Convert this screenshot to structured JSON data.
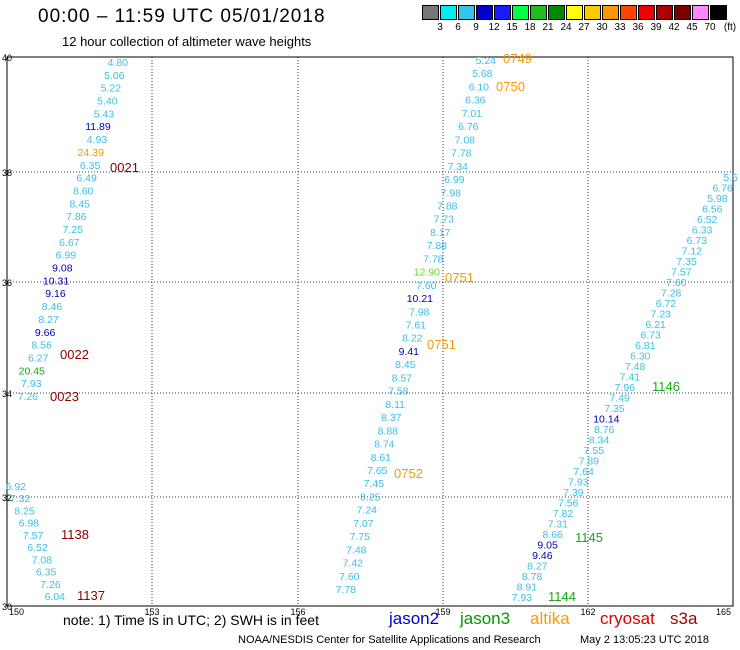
{
  "header": {
    "title": "00:00 – 11:59 UTC 05/01/2018",
    "subtitle": "12 hour collection of altimeter wave heights"
  },
  "colorbar": {
    "unit_label": "(ft)",
    "ticks": [
      "3",
      "6",
      "9",
      "12",
      "15",
      "18",
      "21",
      "24",
      "27",
      "30",
      "33",
      "36",
      "39",
      "42",
      "45",
      "70"
    ],
    "colors": [
      "#777777",
      "#00f0f0",
      "#36c4e8",
      "#0000cc",
      "#1a1aff",
      "#00ff44",
      "#22bb22",
      "#008800",
      "#ffff00",
      "#ffc800",
      "#ff9600",
      "#ff4400",
      "#ee0000",
      "#aa0000",
      "#770000",
      "#ff88ff",
      "#000000"
    ]
  },
  "map": {
    "lon_ticks": [
      "150",
      "153",
      "156",
      "159",
      "162",
      "165"
    ],
    "lat_ticks": [
      "40",
      "38",
      "36",
      "34",
      "32",
      "30"
    ]
  },
  "palette": {
    "cyan": "#3cc0e6",
    "blue": "#0000b4",
    "green": "#16aa16",
    "lime": "#66dd22",
    "orange": "#f49b00",
    "maroon": "#8b0000"
  },
  "tracks": [
    {
      "pts": [
        [
          "4.80",
          "cyan"
        ],
        [
          "5.06",
          "cyan"
        ],
        [
          "5.22",
          "cyan"
        ],
        [
          "5.40",
          "cyan"
        ],
        [
          "5.43",
          "cyan"
        ],
        [
          "11.89",
          "blue"
        ],
        [
          "4.93",
          "cyan"
        ],
        [
          "24.39",
          "orange"
        ],
        [
          "6.35",
          "cyan"
        ],
        [
          "6.49",
          "cyan"
        ],
        [
          "8.60",
          "cyan"
        ],
        [
          "8.45",
          "cyan"
        ],
        [
          "7.86",
          "cyan"
        ],
        [
          "7.25",
          "cyan"
        ],
        [
          "6.67",
          "cyan"
        ],
        [
          "6.99",
          "cyan"
        ],
        [
          "9.08",
          "blue"
        ],
        [
          "10.31",
          "blue"
        ],
        [
          "9.16",
          "blue"
        ],
        [
          "8.46",
          "cyan"
        ],
        [
          "8.27",
          "cyan"
        ],
        [
          "9.66",
          "blue"
        ],
        [
          "8.56",
          "cyan"
        ],
        [
          "6.27",
          "cyan"
        ],
        [
          "20.45",
          "green"
        ],
        [
          "7.93",
          "cyan"
        ],
        [
          "7.26",
          "cyan"
        ]
      ]
    },
    {
      "pts": [
        [
          "6.92",
          "cyan"
        ],
        [
          "7.32",
          "cyan"
        ],
        [
          "8.25",
          "cyan"
        ],
        [
          "6.98",
          "cyan"
        ],
        [
          "7.57",
          "cyan"
        ],
        [
          "6.52",
          "cyan"
        ],
        [
          "7.08",
          "cyan"
        ],
        [
          "6.35",
          "cyan"
        ],
        [
          "7.26",
          "cyan"
        ],
        [
          "6.04",
          "cyan"
        ]
      ]
    },
    {
      "pts": [
        [
          "5.24",
          "cyan"
        ],
        [
          "5.68",
          "cyan"
        ],
        [
          "6.10",
          "cyan"
        ],
        [
          "6.36",
          "cyan"
        ],
        [
          "7.01",
          "cyan"
        ],
        [
          "6.76",
          "cyan"
        ],
        [
          "7.08",
          "cyan"
        ],
        [
          "7.78",
          "cyan"
        ],
        [
          "7.34",
          "cyan"
        ],
        [
          "6.99",
          "cyan"
        ],
        [
          "7.98",
          "cyan"
        ],
        [
          "7.88",
          "cyan"
        ],
        [
          "7.73",
          "cyan"
        ],
        [
          "8.17",
          "cyan"
        ],
        [
          "7.88",
          "cyan"
        ],
        [
          "7.78",
          "cyan"
        ],
        [
          "12.90",
          "lime"
        ],
        [
          "7.60",
          "cyan"
        ],
        [
          "10.21",
          "blue"
        ],
        [
          "7.98",
          "cyan"
        ],
        [
          "7.61",
          "cyan"
        ],
        [
          "8.22",
          "cyan"
        ],
        [
          "9.41",
          "blue"
        ],
        [
          "8.45",
          "cyan"
        ],
        [
          "8.57",
          "cyan"
        ],
        [
          "7.58",
          "cyan"
        ],
        [
          "8.11",
          "cyan"
        ],
        [
          "8.37",
          "cyan"
        ],
        [
          "8.88",
          "cyan"
        ],
        [
          "8.74",
          "cyan"
        ],
        [
          "8.61",
          "cyan"
        ],
        [
          "7.65",
          "cyan"
        ],
        [
          "7.45",
          "cyan"
        ],
        [
          "8.25",
          "cyan"
        ],
        [
          "7.24",
          "cyan"
        ],
        [
          "7.07",
          "cyan"
        ],
        [
          "7.75",
          "cyan"
        ],
        [
          "7.48",
          "cyan"
        ],
        [
          "7.42",
          "cyan"
        ],
        [
          "7.60",
          "cyan"
        ],
        [
          "7.78",
          "cyan"
        ]
      ]
    },
    {
      "pts": [
        [
          "5.5",
          "cyan"
        ],
        [
          "6.76",
          "cyan"
        ],
        [
          "5.98",
          "cyan"
        ],
        [
          "6.56",
          "cyan"
        ],
        [
          "6.52",
          "cyan"
        ],
        [
          "6.33",
          "cyan"
        ],
        [
          "6.73",
          "cyan"
        ],
        [
          "7.12",
          "cyan"
        ],
        [
          "7.35",
          "cyan"
        ],
        [
          "7.57",
          "cyan"
        ],
        [
          "7.60",
          "cyan"
        ],
        [
          "7.28",
          "cyan"
        ],
        [
          "6.72",
          "cyan"
        ],
        [
          "7.23",
          "cyan"
        ],
        [
          "6.21",
          "cyan"
        ],
        [
          "6.73",
          "cyan"
        ],
        [
          "6.81",
          "cyan"
        ],
        [
          "6.30",
          "cyan"
        ],
        [
          "7.48",
          "cyan"
        ],
        [
          "7.41",
          "cyan"
        ],
        [
          "7.96",
          "cyan"
        ],
        [
          "7.49",
          "cyan"
        ],
        [
          "7.35",
          "cyan"
        ],
        [
          "10.14",
          "blue"
        ],
        [
          "8.76",
          "cyan"
        ],
        [
          "8.34",
          "cyan"
        ],
        [
          "7.55",
          "cyan"
        ],
        [
          "7.89",
          "cyan"
        ],
        [
          "7.64",
          "cyan"
        ],
        [
          "7.93",
          "cyan"
        ],
        [
          "7.39",
          "cyan"
        ],
        [
          "7.56",
          "cyan"
        ],
        [
          "7.82",
          "cyan"
        ],
        [
          "7.31",
          "cyan"
        ],
        [
          "8.66",
          "cyan"
        ],
        [
          "9.05",
          "blue"
        ],
        [
          "9.46",
          "blue"
        ],
        [
          "8.27",
          "cyan"
        ],
        [
          "8.78",
          "cyan"
        ],
        [
          "8.91",
          "cyan"
        ],
        [
          "7.93",
          "cyan"
        ]
      ]
    }
  ],
  "times": [
    {
      "text": "0021",
      "color": "maroon"
    },
    {
      "text": "0022",
      "color": "maroon"
    },
    {
      "text": "0023",
      "color": "maroon"
    },
    {
      "text": "1138",
      "color": "maroon"
    },
    {
      "text": "1137",
      "color": "maroon"
    },
    {
      "text": "0749",
      "color": "orange"
    },
    {
      "text": "0750",
      "color": "orange"
    },
    {
      "text": "0751",
      "color": "orange"
    },
    {
      "text": "0751",
      "color": "orange"
    },
    {
      "text": "0752",
      "color": "orange"
    },
    {
      "text": "1146",
      "color": "green"
    },
    {
      "text": "1145",
      "color": "green"
    },
    {
      "text": "1144",
      "color": "green"
    }
  ],
  "footer": {
    "note": "note:  1) Time is in UTC; 2) SWH is in feet",
    "credit": "NOAA/NESDIS Center for Satellite Applications and Research",
    "date": "May  2 13:05:23 UTC 2018",
    "satellites": [
      {
        "name": "jason2",
        "color": "#0000cc"
      },
      {
        "name": "jason3",
        "color": "#009900"
      },
      {
        "name": "altika",
        "color": "#ff9900"
      },
      {
        "name": "cryosat",
        "color": "#dd0000"
      },
      {
        "name": "s3a",
        "color": "#990000"
      }
    ]
  }
}
